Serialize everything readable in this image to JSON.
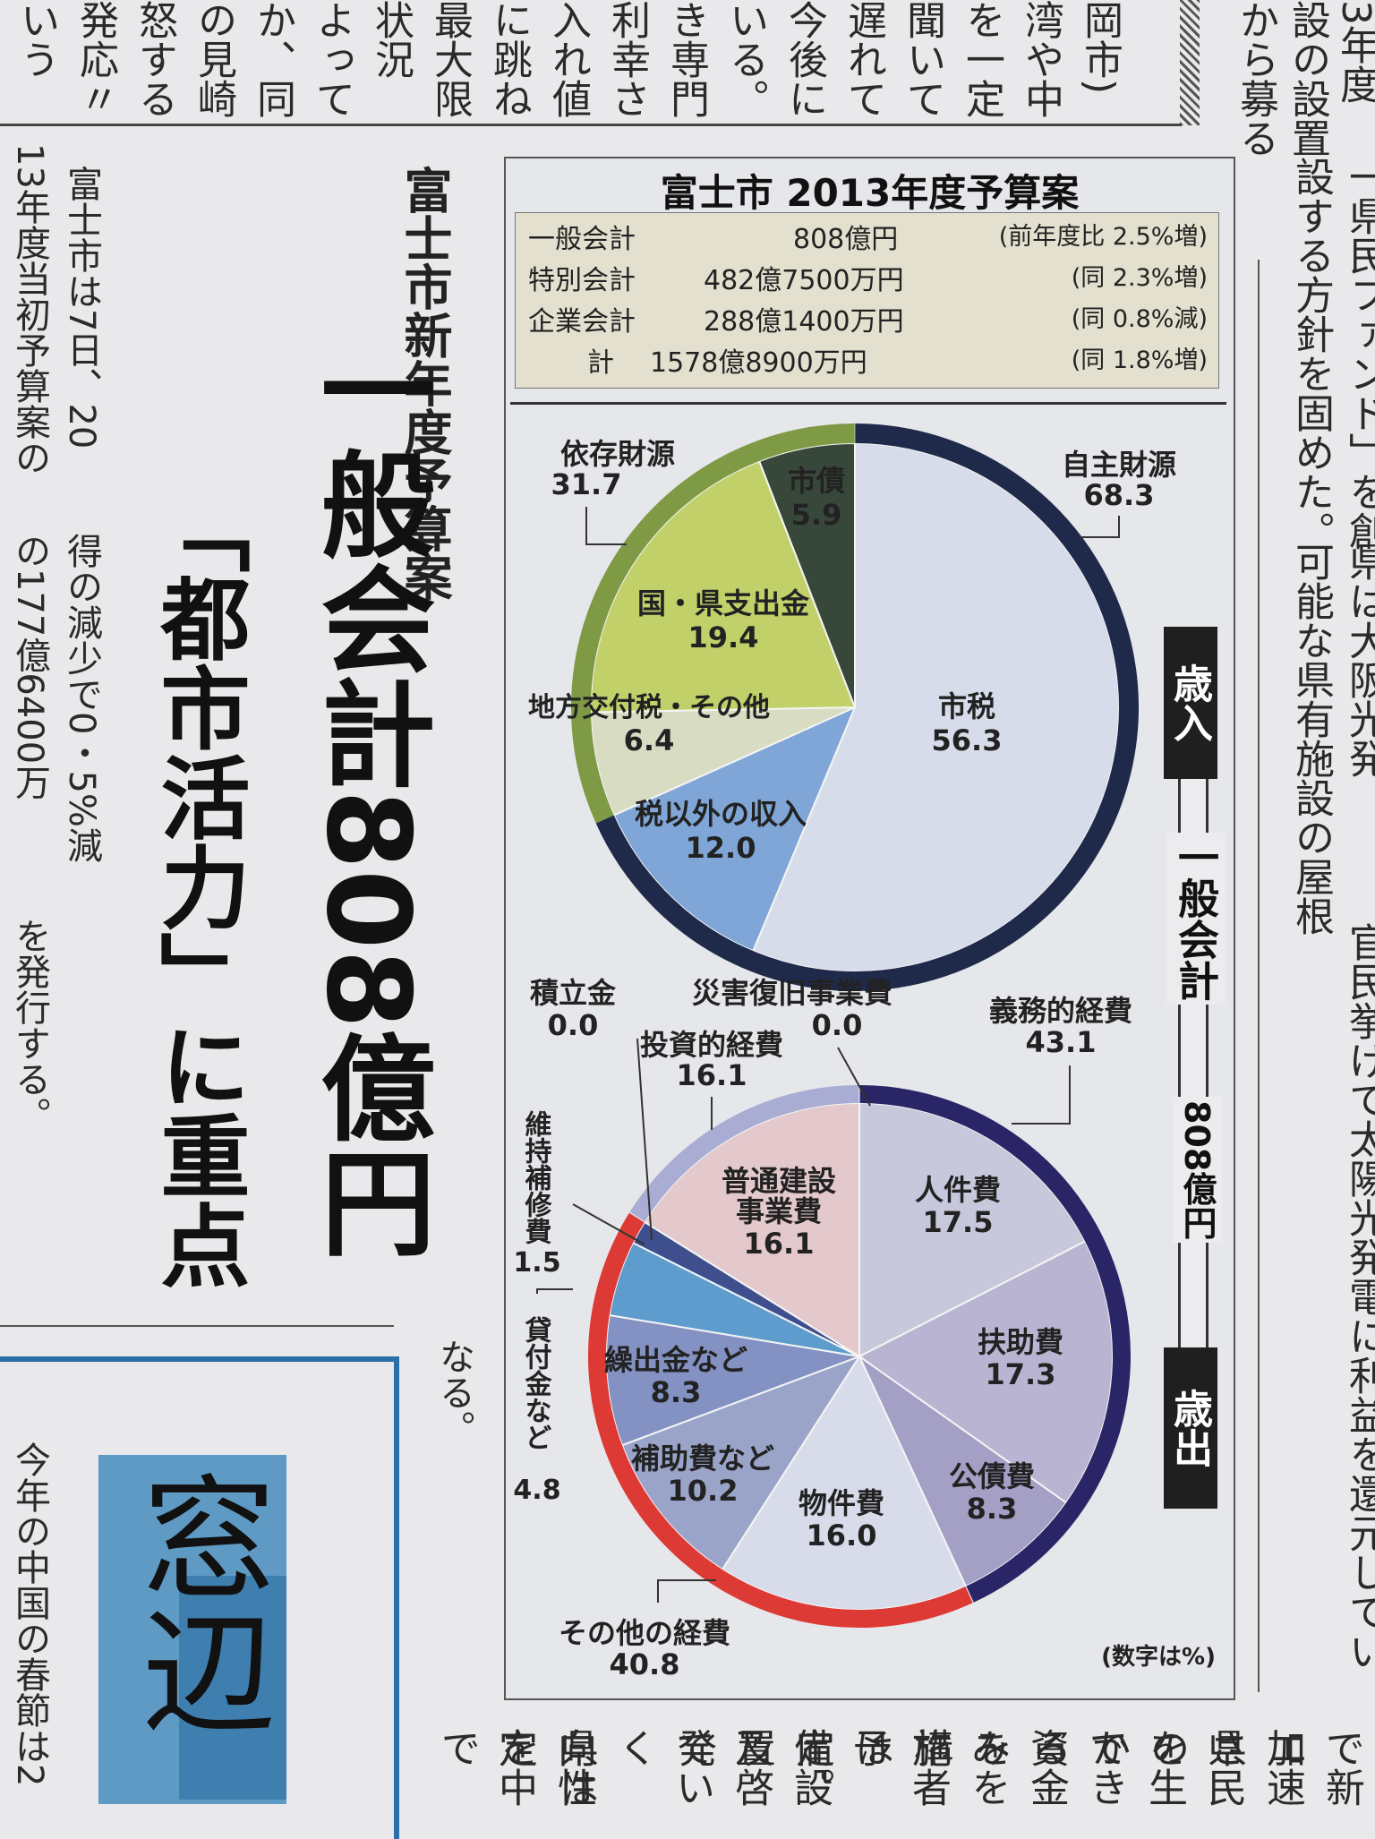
{
  "article": {
    "kicker": "富士市新年度予算案",
    "headline_main": "一般会計808億円",
    "headline_sub": "「都市活力」に重点",
    "body_col1": "富士市は7日、20",
    "body_col2": "13年度当初予算案の",
    "body_col3": "得の減少で0・5%減",
    "body_col4": "の177億6400万",
    "body_col5": "を発行する。",
    "body_left_fragment": "なる。",
    "column_title": "窓辺",
    "column_text": "今年の中国の春節は2"
  },
  "right_article": {
    "col1": "3年度",
    "col2": "設の設置",
    "col3": "から募る",
    "col4": "一県民ファンド」を創",
    "col5": "設する方針を固めた。",
    "col6": "県は大阪光発",
    "col7": "可能な県有施設の屋根",
    "col8": "官民挙げて太陽光発電",
    "col9": "に利益を還元してい"
  },
  "top_strip": [
    "いう",
    "発応〃",
    "怒する",
    "の見崎",
    "か、同",
    "よって",
    "状況",
    "最大限",
    "に跳ね",
    "入れ値",
    "利幸さ",
    "き専門",
    "いる。",
    "今後に",
    "遅れて",
    "聞いて",
    "を一定",
    "湾や中",
    "岡市)"
  ],
  "bottom_strip": [
    "定中で",
    "向性を",
    "県は",
    "ていく",
    "及啓発",
    "備設置",
    "予定。",
    "施者は",
    "みを構",
    "資金を",
    "できる",
    "を生か",
    "県民の",
    "加速さ",
    "で新エ"
  ],
  "chart": {
    "title": "富士市 2013年度予算案",
    "summary": [
      {
        "name": "一般会計",
        "amount": "808億円",
        "change": "(前年度比 2.5%増)"
      },
      {
        "name": "特別会計",
        "amount": "482億7500万円",
        "change": "(同 2.3%増)"
      },
      {
        "name": "企業会計",
        "amount": "288億1400万円",
        "change": "(同 0.8%減)"
      },
      {
        "name": "計",
        "amount": "1578億8900万円",
        "change": "(同 1.8%増)"
      }
    ],
    "side_label_revenue": "歳入",
    "side_label_general": "一般会計",
    "side_label_total": "808億円",
    "side_label_expenditure": "歳出",
    "unit_note": "(数字は%)",
    "colors": {
      "own_ring": "#1f2a4a",
      "dep_ring": "#7f9a45",
      "obligatory_ring": "#2a2566",
      "investment_ring": "#dd3a35",
      "other_ring": "#a9acd3"
    }
  },
  "chart_data": [
    {
      "type": "pie",
      "title": "歳入",
      "groups": [
        {
          "name": "自主財源",
          "value": 68.3
        },
        {
          "name": "依存財源",
          "value": 31.7
        }
      ],
      "slices": [
        {
          "name": "市税",
          "value": 56.3,
          "group": "自主財源",
          "color": "#d6dcea"
        },
        {
          "name": "税以外の収入",
          "value": 12.0,
          "group": "自主財源",
          "color": "#7fa6d6"
        },
        {
          "name": "地方交付税・その他",
          "value": 6.4,
          "group": "依存財源",
          "color": "#d8dcc2"
        },
        {
          "name": "国・県支出金",
          "value": 19.4,
          "group": "依存財源",
          "color": "#c2d06a"
        },
        {
          "name": "市債",
          "value": 5.9,
          "group": "依存財源",
          "color": "#37473a"
        }
      ]
    },
    {
      "type": "pie",
      "title": "歳出",
      "groups": [
        {
          "name": "義務的経費",
          "value": 43.1
        },
        {
          "name": "投資的経費",
          "value": 16.1
        },
        {
          "name": "その他の経費",
          "value": 40.8
        }
      ],
      "slices": [
        {
          "name": "人件費",
          "value": 17.5,
          "group": "義務的経費",
          "color": "#c8c8dc"
        },
        {
          "name": "扶助費",
          "value": 17.3,
          "group": "義務的経費",
          "color": "#b8b4d2"
        },
        {
          "name": "公債費",
          "value": 8.3,
          "group": "義務的経費",
          "color": "#a49fc4"
        },
        {
          "name": "物件費",
          "value": 16.0,
          "group": "その他の経費",
          "color": "#d8dbea"
        },
        {
          "name": "補助費など",
          "value": 10.2,
          "group": "その他の経費",
          "color": "#9aa3c8"
        },
        {
          "name": "繰出金など",
          "value": 8.3,
          "group": "その他の経費",
          "color": "#8392c2"
        },
        {
          "name": "貸付金など",
          "value": 4.8,
          "group": "その他の経費",
          "color": "#5d9ccc"
        },
        {
          "name": "維持補修費",
          "value": 1.5,
          "group": "その他の経費",
          "color": "#3f4f8e"
        },
        {
          "name": "積立金",
          "value": 0.0,
          "group": "その他の経費",
          "color": "#3f4f8e"
        },
        {
          "name": "普通建設事業費",
          "value": 16.1,
          "group": "投資的経費",
          "color": "#e3c8cc"
        },
        {
          "name": "災害復旧事業費",
          "value": 0.0,
          "group": "投資的経費",
          "color": "#e3c8cc"
        }
      ]
    }
  ]
}
